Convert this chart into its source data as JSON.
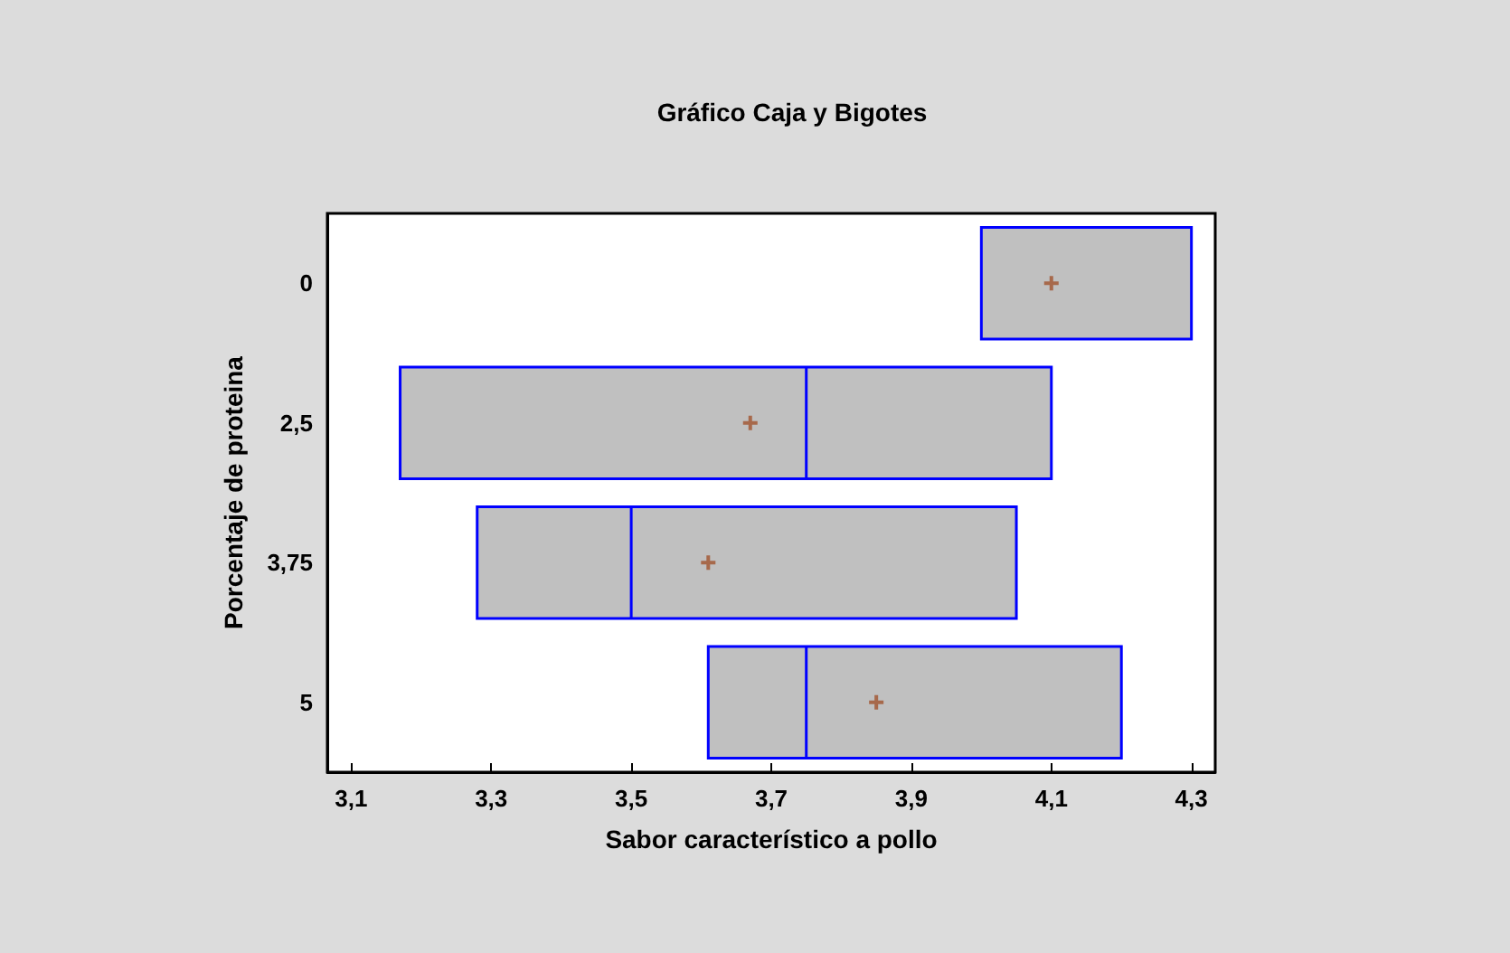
{
  "chart_data": {
    "type": "box",
    "title": "Gráfico Caja y Bigotes",
    "xlabel": "Sabor característico a pollo",
    "ylabel": "Porcentaje de proteina",
    "orientation": "horizontal",
    "categories": [
      "0",
      "2,5",
      "3,75",
      "5"
    ],
    "boxes": [
      {
        "low": 4.0,
        "q1": 4.0,
        "median": 4.0,
        "q3": 4.3,
        "high": 4.3,
        "mean": 4.1
      },
      {
        "low": 3.17,
        "q1": 3.17,
        "median": 3.75,
        "q3": 4.1,
        "high": 4.1,
        "mean": 3.67
      },
      {
        "low": 3.28,
        "q1": 3.28,
        "median": 3.5,
        "q3": 4.05,
        "high": 4.05,
        "mean": 3.61
      },
      {
        "low": 3.61,
        "q1": 3.61,
        "median": 3.75,
        "q3": 4.2,
        "high": 4.2,
        "mean": 3.85
      }
    ],
    "color": "#c0c0c0",
    "xlim": [
      3.066,
      4.334
    ],
    "xticks": [
      {
        "value": 3.1,
        "label": "3,1"
      },
      {
        "value": 3.3,
        "label": "3,3"
      },
      {
        "value": 3.5,
        "label": "3,5"
      },
      {
        "value": 3.7,
        "label": "3,7"
      },
      {
        "value": 3.9,
        "label": "3,9"
      },
      {
        "value": 4.1,
        "label": "4,1"
      },
      {
        "value": 4.3,
        "label": "4,3"
      }
    ],
    "grid": false
  }
}
